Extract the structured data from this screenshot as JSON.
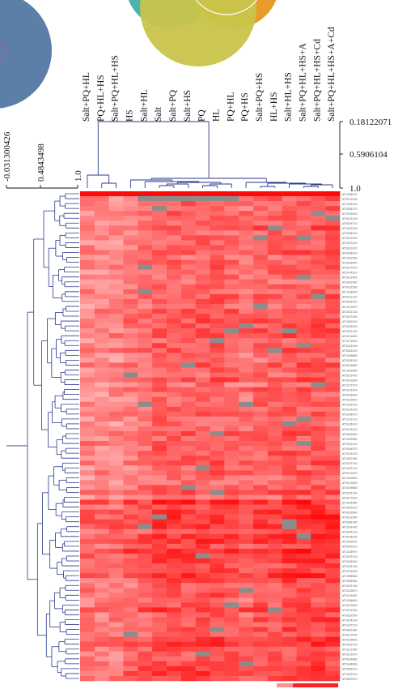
{
  "chart_data": {
    "type": "heatmap",
    "title": "",
    "xlabel": "",
    "ylabel": "",
    "columns": [
      "Salt+PQ+HL",
      "PQ+HL+HS",
      "Salt+PQ+HL+HS",
      "HS",
      "Salt+HL",
      "Salt",
      "Salt+PQ",
      "Salt+HS",
      "PQ",
      "HL",
      "PQ+HL",
      "PQ+HS",
      "Salt+PQ+HS",
      "HL+HS",
      "Salt+HL+HS",
      "Salt+PQ+HL+HS+A",
      "Salt+PQ+HL+HS+Cd",
      "Salt+PQ+HL+HS+A+Cd"
    ],
    "column_dendrogram_scale": [
      "0.18122071",
      "0.5906104",
      "1.0"
    ],
    "row_dendrogram_scale": [
      "-0.031300426",
      "0.4843498",
      "1.0"
    ],
    "row_labels": [
      "AT1G48070",
      "AT5G12030",
      "AT1G26100",
      "AT3G08170",
      "AT2G29500",
      "AT4G25200",
      "AT5G59720",
      "AT1G53540",
      "AT3G46230",
      "AT4G10250",
      "AT1G07400",
      "AT5G12020",
      "AT2G46240",
      "AT1G52560",
      "AT3G09640",
      "AT4G27670",
      "AT1G74310",
      "AT5G51440",
      "AT2G20560",
      "AT3G12580",
      "AT1G16030",
      "AT4G21320",
      "AT5G02500",
      "AT1G17870",
      "AT2G32120",
      "AT3G07090",
      "AT1G60940",
      "AT5G56030",
      "AT2G47180",
      "AT4G11660",
      "AT1G71000",
      "AT3G24500",
      "AT5G62020",
      "AT1G59860",
      "AT2G26150",
      "AT4G16660",
      "AT1G09080",
      "AT5G25450",
      "AT3G22830",
      "AT1G77570",
      "AT2G19310",
      "AT4G36990",
      "AT5G52640",
      "AT1G55530",
      "AT3G14200",
      "AT2G38470",
      "AT1G32210",
      "AT5G16970",
      "AT4G15420",
      "AT3G61890",
      "AT1G05680",
      "AT2G41430",
      "AT5G48570",
      "AT3G25230",
      "AT1G67360",
      "AT4G37370",
      "AT2G43120",
      "AT5G37670",
      "AT1G20620",
      "AT3G17800",
      "AT4G19880",
      "AT2G25140",
      "AT5G17020",
      "AT1G04980",
      "AT3G51910",
      "AT4G23600",
      "AT2G22360",
      "AT5G66780",
      "AT1G29395",
      "AT3G04120",
      "AT4G34050",
      "AT2G40000",
      "AT5G40010",
      "AT1G18970",
      "AT3G53230",
      "AT4G39090",
      "AT2G34190",
      "AT5G13930",
      "AT1G66080",
      "AT3G08580",
      "AT4G25100",
      "AT2G30870",
      "AT5G15960",
      "AT1G56600",
      "AT3G27660",
      "AT4G12400",
      "AT2G33590",
      "AT5G54100",
      "AT1G47510",
      "AT3G02480",
      "AT4G17090",
      "AT2G39800",
      "AT5G20720",
      "AT1G11360",
      "AT3G15670",
      "AT4G28480",
      "AT2G44060",
      "AT5G49910",
      "AT1G30510",
      "AT3G50970"
    ]
  }
}
